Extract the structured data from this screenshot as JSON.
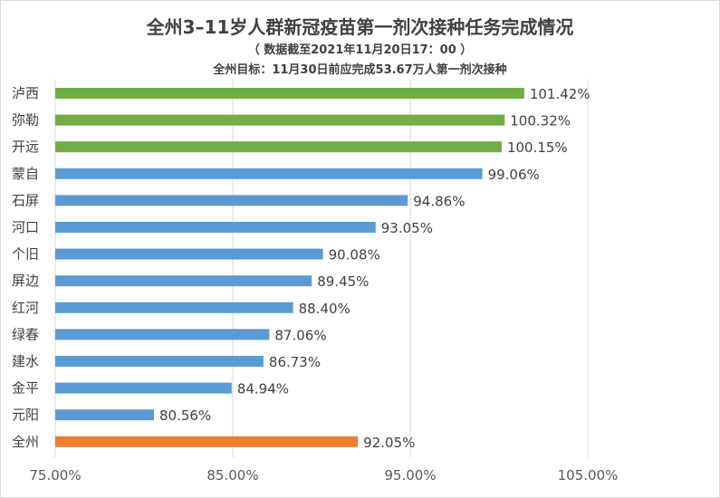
{
  "chart_data": {
    "type": "bar",
    "orientation": "horizontal",
    "title": "全州3–11岁人群新冠疫苗第一剂次接种任务完成情况",
    "subtitle": "（ 数据截至2021年11月20日17：00 ）",
    "note": "全州目标：11月30日前应完成53.67万人第一剂次接种",
    "categories": [
      "泸西",
      "弥勒",
      "开远",
      "蒙自",
      "石屏",
      "河口",
      "个旧",
      "屏边",
      "红河",
      "绿春",
      "建水",
      "金平",
      "元阳",
      "全州"
    ],
    "values": [
      101.42,
      100.32,
      100.15,
      99.06,
      94.86,
      93.05,
      90.08,
      89.45,
      88.4,
      87.06,
      86.73,
      84.94,
      80.56,
      92.05
    ],
    "labels": [
      "101.42%",
      "100.32%",
      "100.15%",
      "99.06%",
      "94.86%",
      "93.05%",
      "90.08%",
      "89.45%",
      "88.40%",
      "87.06%",
      "86.73%",
      "84.94%",
      "80.56%",
      "92.05%"
    ],
    "bar_colors": [
      "#70ad47",
      "#70ad47",
      "#70ad47",
      "#5b9bd5",
      "#5b9bd5",
      "#5b9bd5",
      "#5b9bd5",
      "#5b9bd5",
      "#5b9bd5",
      "#5b9bd5",
      "#5b9bd5",
      "#5b9bd5",
      "#5b9bd5",
      "#ed7d31"
    ],
    "xlim": [
      75,
      110
    ],
    "xticks": [
      75,
      85,
      95,
      105
    ],
    "xtick_labels": [
      "75.00%",
      "85.00%",
      "95.00%",
      "105.00%"
    ],
    "grid": true,
    "legend": "none"
  }
}
